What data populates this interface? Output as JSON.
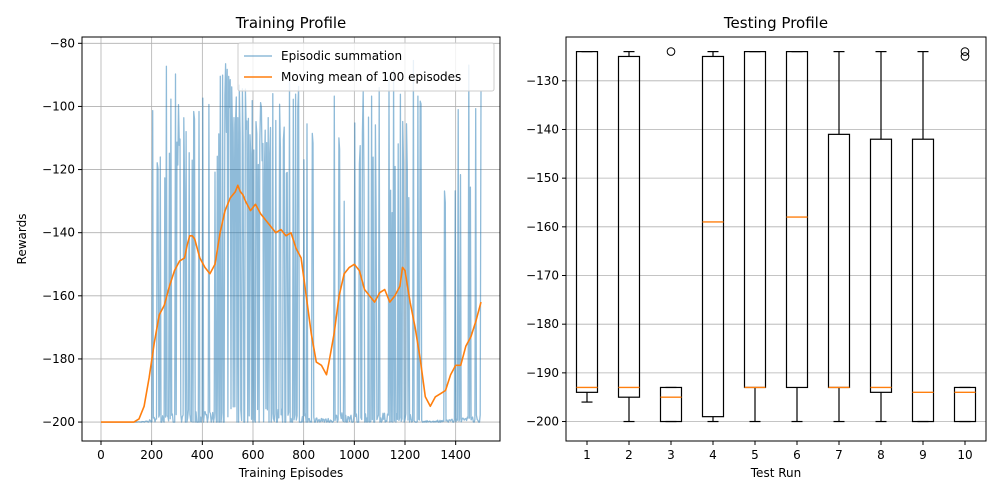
{
  "chart_data": [
    {
      "type": "line",
      "title": "Training Profile",
      "xlabel": "Training Episodes",
      "ylabel": "Rewards",
      "xlim": [
        -75,
        1575
      ],
      "ylim": [
        -206,
        -78
      ],
      "xticks": [
        0,
        200,
        400,
        600,
        800,
        1000,
        1200,
        1400
      ],
      "xtick_labels": [
        "0",
        "200",
        "400",
        "600",
        "800",
        "1000",
        "1200",
        "1400"
      ],
      "yticks": [
        -200,
        -180,
        -160,
        -140,
        -120,
        -100,
        -80
      ],
      "ytick_labels": [
        "−200",
        "−180",
        "−160",
        "−140",
        "−120",
        "−100",
        "−80"
      ],
      "grid": true,
      "legend_position": "top-right",
      "series": [
        {
          "name": "Episodic summation",
          "color": "#1f77b4",
          "opacity": 0.5,
          "style": "noisy",
          "x_range": [
            0,
            1500
          ],
          "baseline": -200,
          "active_from": 140,
          "min_value": -200,
          "max_value": -84
        },
        {
          "name": "Moving mean of 100 episodes",
          "color": "#ff7f0e",
          "x": [
            0,
            130,
            150,
            170,
            190,
            210,
            230,
            250,
            270,
            290,
            310,
            330,
            340,
            350,
            360,
            370,
            390,
            410,
            430,
            450,
            470,
            490,
            510,
            530,
            540,
            550,
            560,
            570,
            590,
            610,
            630,
            650,
            670,
            690,
            710,
            730,
            750,
            770,
            790,
            810,
            830,
            850,
            870,
            890,
            900,
            920,
            940,
            960,
            980,
            1000,
            1020,
            1040,
            1060,
            1080,
            1100,
            1120,
            1140,
            1160,
            1180,
            1190,
            1200,
            1220,
            1240,
            1260,
            1280,
            1300,
            1320,
            1340,
            1360,
            1380,
            1400,
            1420,
            1440,
            1460,
            1480,
            1500
          ],
          "values": [
            -200,
            -200,
            -199,
            -195,
            -186,
            -175,
            -166,
            -163,
            -157,
            -152,
            -149,
            -148,
            -144,
            -141,
            -141,
            -142,
            -148,
            -151,
            -153,
            -150,
            -140,
            -133,
            -129,
            -127,
            -125,
            -127,
            -128,
            -130,
            -133,
            -131,
            -134,
            -136,
            -138,
            -140,
            -139,
            -141,
            -140,
            -145,
            -148,
            -160,
            -172,
            -181,
            -182,
            -185,
            -181,
            -172,
            -160,
            -153,
            -151,
            -150,
            -152,
            -158,
            -160,
            -162,
            -159,
            -158,
            -162,
            -160,
            -157,
            -151,
            -152,
            -162,
            -170,
            -180,
            -192,
            -195,
            -192,
            -191,
            -190,
            -185,
            -182,
            -182,
            -176,
            -173,
            -168,
            -162
          ]
        }
      ]
    },
    {
      "type": "box",
      "title": "Testing Profile",
      "xlabel": "Test Run",
      "ylabel": "",
      "ylim": [
        -204,
        -121
      ],
      "categories": [
        "1",
        "2",
        "3",
        "4",
        "5",
        "6",
        "7",
        "8",
        "9",
        "10"
      ],
      "yticks": [
        -200,
        -190,
        -180,
        -170,
        -160,
        -150,
        -140,
        -130
      ],
      "ytick_labels": [
        "−200",
        "−190",
        "−180",
        "−170",
        "−160",
        "−150",
        "−140",
        "−130"
      ],
      "grid": true,
      "box_color": "#000000",
      "median_color": "#ff7f0e",
      "boxes": [
        {
          "whisker_low": -196,
          "q1": -194,
          "median": -193,
          "q3": -124,
          "whisker_high": -124,
          "fliers": []
        },
        {
          "whisker_low": -200,
          "q1": -195,
          "median": -193,
          "q3": -125,
          "whisker_high": -124,
          "fliers": []
        },
        {
          "whisker_low": -200,
          "q1": -200,
          "median": -195,
          "q3": -193,
          "whisker_high": -193,
          "fliers": [
            -124
          ]
        },
        {
          "whisker_low": -200,
          "q1": -199,
          "median": -159,
          "q3": -125,
          "whisker_high": -124,
          "fliers": []
        },
        {
          "whisker_low": -200,
          "q1": -193,
          "median": -193,
          "q3": -124,
          "whisker_high": -124,
          "fliers": []
        },
        {
          "whisker_low": -200,
          "q1": -193,
          "median": -158,
          "q3": -124,
          "whisker_high": -124,
          "fliers": []
        },
        {
          "whisker_low": -200,
          "q1": -193,
          "median": -193,
          "q3": -141,
          "whisker_high": -124,
          "fliers": []
        },
        {
          "whisker_low": -200,
          "q1": -194,
          "median": -193,
          "q3": -142,
          "whisker_high": -124,
          "fliers": []
        },
        {
          "whisker_low": -200,
          "q1": -200,
          "median": -194,
          "q3": -142,
          "whisker_high": -124,
          "fliers": []
        },
        {
          "whisker_low": -200,
          "q1": -200,
          "median": -194,
          "q3": -193,
          "whisker_high": -193,
          "fliers": [
            -124,
            -125
          ]
        }
      ]
    }
  ]
}
